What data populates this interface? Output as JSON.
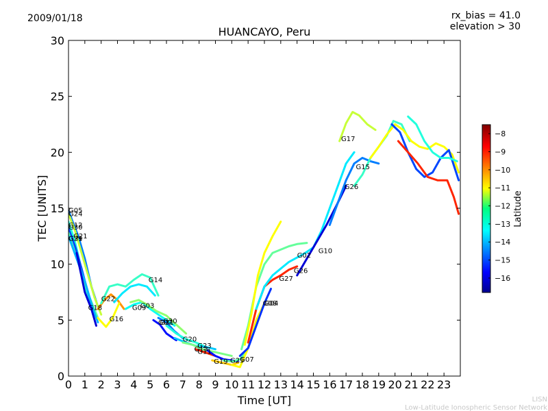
{
  "header": {
    "date": "2009/01/18",
    "params": [
      "rx_bias = 41.0",
      "elevation > 30"
    ]
  },
  "footer": {
    "credit_line1": "LISN",
    "credit_line2": "Low-Latitude Ionospheric Sensor Network"
  },
  "chart_data": {
    "type": "line",
    "title": "HUANCAYO, Peru",
    "xlabel": "Time [UT]",
    "ylabel": "TEC [UNITS]",
    "xlim": [
      0,
      24
    ],
    "ylim": [
      0,
      30
    ],
    "x_ticks": [
      0,
      1,
      2,
      3,
      4,
      5,
      6,
      7,
      8,
      9,
      10,
      11,
      12,
      13,
      14,
      15,
      16,
      17,
      18,
      19,
      20,
      21,
      22,
      23
    ],
    "y_ticks": [
      0,
      5,
      10,
      15,
      20,
      25,
      30
    ],
    "grid": false,
    "colorbar": {
      "label": "Latitude",
      "range": [
        -16.8,
        -7.5
      ],
      "ticks": [
        -8,
        -9,
        -10,
        -11,
        -12,
        -13,
        -14,
        -15,
        -16
      ],
      "colormap": "jet"
    },
    "series": [
      {
        "name": "G05",
        "lat": -14.5,
        "x": [
          0,
          0.3,
          0.6,
          1.0,
          1.4,
          1.8
        ],
        "y": [
          14.8,
          13.6,
          12.5,
          10.5,
          8.0,
          6.2
        ]
      },
      {
        "name": "G24",
        "lat": -11.5,
        "x": [
          0,
          0.4,
          0.8,
          1.2,
          1.6,
          2.0
        ],
        "y": [
          14.5,
          13.0,
          11.0,
          9.0,
          7.0,
          5.5
        ]
      },
      {
        "name": "G12",
        "lat": -13.0,
        "x": [
          0,
          0.4,
          0.8,
          1.2,
          1.6
        ],
        "y": [
          13.8,
          12.0,
          9.5,
          7.0,
          5.8
        ]
      },
      {
        "name": "G30",
        "lat": -15.0,
        "x": [
          0,
          0.4,
          0.8,
          1.2,
          1.6
        ],
        "y": [
          13.2,
          11.6,
          9.6,
          7.4,
          5.5
        ]
      },
      {
        "name": "G21",
        "lat": -12.5,
        "x": [
          0,
          0.4,
          0.8,
          1.3,
          1.8
        ],
        "y": [
          12.8,
          11.0,
          9.2,
          7.0,
          5.2
        ]
      },
      {
        "name": "G29",
        "lat": -14.0,
        "x": [
          0,
          0.5,
          1.0,
          1.5,
          1.8
        ],
        "y": [
          12.5,
          10.5,
          8.5,
          6.0,
          4.8
        ]
      },
      {
        "name": "G18",
        "lat": -16.0,
        "x": [
          0.5,
          1.0,
          1.4,
          1.7
        ],
        "y": [
          11.0,
          7.5,
          6.0,
          4.5
        ]
      },
      {
        "name": "G22",
        "lat": -10.0,
        "x": [
          1.8,
          2.2,
          2.6,
          3.0,
          3.4
        ],
        "y": [
          6.0,
          6.8,
          7.3,
          6.8,
          6.0
        ]
      },
      {
        "name": "G16",
        "lat": -11.0,
        "x": [
          1.8,
          2.3,
          2.7,
          3.1
        ],
        "y": [
          5.2,
          4.4,
          5.2,
          6.5
        ]
      },
      {
        "name": "G14",
        "lat": -12.8,
        "x": [
          2.0,
          2.5,
          3.0,
          3.5,
          4.0,
          4.5,
          5.0,
          5.5
        ],
        "y": [
          6.5,
          8.0,
          8.2,
          8.0,
          8.6,
          9.1,
          8.8,
          7.2
        ]
      },
      {
        "name": "G09",
        "lat": -13.5,
        "x": [
          2.8,
          3.3,
          3.8,
          4.3,
          4.8,
          5.3
        ],
        "y": [
          6.6,
          7.4,
          8.0,
          8.2,
          8.0,
          7.2
        ]
      },
      {
        "name": "G03",
        "lat": -13.2,
        "x": [
          3.5,
          4.0,
          4.5,
          5.0,
          5.5,
          6.0,
          6.5
        ],
        "y": [
          6.0,
          6.4,
          6.6,
          6.0,
          5.5,
          5.0,
          4.5
        ]
      },
      {
        "name": "G07",
        "lat": -12.0,
        "x": [
          3.8,
          4.3,
          4.8,
          5.4,
          6.0,
          6.6,
          7.2
        ],
        "y": [
          6.6,
          6.8,
          6.4,
          5.8,
          5.4,
          4.6,
          3.8
        ]
      },
      {
        "name": "G31",
        "lat": -15.5,
        "x": [
          5.2,
          5.6,
          6.0,
          6.6
        ],
        "y": [
          5.0,
          4.6,
          3.8,
          3.2
        ]
      },
      {
        "name": "G30",
        "lat": -14.5,
        "x": [
          5.5,
          6.0,
          6.5,
          7.0
        ],
        "y": [
          5.2,
          4.8,
          4.0,
          3.4
        ]
      },
      {
        "name": "G20",
        "lat": -13.0,
        "x": [
          6.0,
          6.6,
          7.2,
          7.8,
          8.4
        ],
        "y": [
          4.5,
          3.8,
          3.3,
          3.0,
          2.6
        ]
      },
      {
        "name": "G23",
        "lat": -13.8,
        "x": [
          6.5,
          7.2,
          7.8,
          8.4,
          9.0
        ],
        "y": [
          3.4,
          3.0,
          2.7,
          2.6,
          2.4
        ]
      },
      {
        "name": "G11",
        "lat": -12.2,
        "x": [
          7.0,
          7.6,
          8.2,
          8.8,
          9.4,
          10.0
        ],
        "y": [
          3.0,
          2.8,
          2.4,
          2.2,
          2.0,
          1.8
        ]
      },
      {
        "name": "G13",
        "lat": -9.0,
        "x": [
          7.8,
          8.2,
          8.6,
          9.0
        ],
        "y": [
          2.4,
          2.2,
          2.0,
          1.8
        ]
      },
      {
        "name": "G19",
        "lat": -15.5,
        "x": [
          8.5,
          9.0,
          9.5,
          10.0,
          10.4
        ],
        "y": [
          2.3,
          1.8,
          1.5,
          1.4,
          1.3
        ]
      },
      {
        "name": "G25",
        "lat": -10.5,
        "x": [
          8.8,
          9.4,
          10.0,
          10.4
        ],
        "y": [
          1.4,
          1.2,
          1.0,
          1.2
        ]
      },
      {
        "name": "G07",
        "lat": -12.5,
        "x": [
          9.5,
          10.0,
          10.5,
          10.9
        ],
        "y": [
          1.4,
          1.3,
          1.5,
          2.2
        ]
      },
      {
        "name": "G04",
        "lat": -11.0,
        "x": [
          10.0,
          10.5,
          11.0,
          11.5,
          12.0
        ],
        "y": [
          1.0,
          0.8,
          2.5,
          5.0,
          6.5
        ]
      },
      {
        "name": "G08",
        "lat": -15.2,
        "x": [
          10.5,
          11.0,
          11.5,
          12.0,
          12.4
        ],
        "y": [
          1.8,
          2.5,
          4.5,
          6.5,
          7.8
        ]
      },
      {
        "name": "G02",
        "lat": -12.4,
        "x": [
          10.6,
          11.0,
          11.5,
          12.0,
          12.5,
          13.0,
          13.5,
          14.0,
          14.6
        ],
        "y": [
          2.4,
          4.5,
          8.0,
          10.0,
          11.0,
          11.3,
          11.6,
          11.8,
          11.9
        ]
      },
      {
        "name": "G27",
        "lat": -11.0,
        "x": [
          10.8,
          11.2,
          11.6,
          12.0,
          12.5,
          13.0
        ],
        "y": [
          2.8,
          5.5,
          9.0,
          11.0,
          12.5,
          13.8
        ]
      },
      {
        "name": "G26",
        "lat": -9.0,
        "x": [
          11.0,
          11.5,
          12.0,
          12.5,
          13.0,
          13.5,
          14.0
        ],
        "y": [
          3.0,
          6.0,
          8.0,
          8.6,
          9.0,
          9.5,
          9.8
        ]
      },
      {
        "name": "G10",
        "lat": -13.5,
        "x": [
          11.5,
          12.0,
          12.5,
          13.0,
          13.5,
          14.0,
          14.5,
          15.0,
          15.5,
          16.0,
          16.5,
          17.0,
          17.5
        ],
        "y": [
          6.0,
          8.0,
          9.0,
          9.6,
          10.2,
          10.6,
          11.0,
          11.5,
          13.0,
          15.0,
          17.0,
          19.0,
          20.0
        ]
      },
      {
        "name": "G26",
        "lat": -16.0,
        "x": [
          14.0,
          14.6,
          15.2,
          15.8,
          16.4,
          17.0
        ],
        "y": [
          9.0,
          10.5,
          12.0,
          13.5,
          15.2,
          17.0
        ]
      },
      {
        "name": "G17",
        "lat": -11.5,
        "x": [
          16.6,
          17.0,
          17.4,
          17.8,
          18.3,
          18.8
        ],
        "y": [
          21.0,
          22.6,
          23.6,
          23.3,
          22.5,
          22.0
        ]
      },
      {
        "name": "G15",
        "lat": -14.5,
        "x": [
          16.0,
          16.5,
          17.0,
          17.5,
          18.0,
          18.5,
          19.0
        ],
        "y": [
          13.5,
          15.5,
          17.5,
          19.0,
          19.5,
          19.2,
          19.0
        ]
      },
      {
        "name": "G15",
        "lat": -12.8,
        "x": [
          17.5,
          18.0,
          18.5,
          19.0,
          19.5,
          19.9,
          20.4,
          20.9
        ],
        "y": [
          17.0,
          18.0,
          19.5,
          20.5,
          21.5,
          22.8,
          22.5,
          21.0
        ]
      },
      {
        "name": "G28",
        "lat": -11.0,
        "x": [
          18.5,
          19.0,
          19.5,
          20.0,
          20.5,
          21.0,
          21.5,
          22.0,
          22.5,
          23.0,
          23.5,
          23.9
        ],
        "y": [
          19.5,
          20.5,
          21.6,
          22.5,
          22.0,
          21.0,
          20.5,
          20.3,
          20.8,
          20.5,
          19.8,
          18.2
        ]
      },
      {
        "name": "G16",
        "lat": -15.0,
        "x": [
          19.8,
          20.3,
          20.8,
          21.3,
          21.8,
          22.3,
          22.8,
          23.3,
          23.9
        ],
        "y": [
          22.5,
          21.8,
          20.0,
          18.5,
          17.8,
          18.2,
          19.5,
          20.2,
          17.5
        ]
      },
      {
        "name": "G21",
        "lat": -9.0,
        "x": [
          20.2,
          20.8,
          21.4,
          22.0,
          22.6,
          23.2,
          23.6,
          23.9
        ],
        "y": [
          21.0,
          20.0,
          19.0,
          17.8,
          17.5,
          17.5,
          16.0,
          14.5
        ]
      },
      {
        "name": "G31",
        "lat": -13.0,
        "x": [
          20.8,
          21.3,
          21.8,
          22.3,
          22.8,
          23.3,
          23.8
        ],
        "y": [
          23.2,
          22.5,
          21.0,
          20.0,
          19.5,
          19.5,
          19.2
        ]
      }
    ],
    "annotations": [
      {
        "text": "G05",
        "x": 0.0,
        "y": 14.6
      },
      {
        "text": "G24",
        "x": 0.0,
        "y": 14.3
      },
      {
        "text": "G12",
        "x": 0.0,
        "y": 13.3
      },
      {
        "text": "G30",
        "x": 0.0,
        "y": 13.1
      },
      {
        "text": "G21",
        "x": 0.3,
        "y": 12.3
      },
      {
        "text": "G29",
        "x": 0.0,
        "y": 12.1
      },
      {
        "text": "G31",
        "x": 0.0,
        "y": 12.1
      },
      {
        "text": "G18",
        "x": 1.2,
        "y": 5.9
      },
      {
        "text": "G22",
        "x": 2.0,
        "y": 6.7
      },
      {
        "text": "G16",
        "x": 2.5,
        "y": 4.9
      },
      {
        "text": "G14",
        "x": 4.9,
        "y": 8.4
      },
      {
        "text": "G09",
        "x": 3.9,
        "y": 5.9
      },
      {
        "text": "G03",
        "x": 4.4,
        "y": 6.1
      },
      {
        "text": "G07",
        "x": 5.5,
        "y": 4.6
      },
      {
        "text": "G31",
        "x": 5.6,
        "y": 4.6
      },
      {
        "text": "G30",
        "x": 5.8,
        "y": 4.7
      },
      {
        "text": "G20",
        "x": 7.0,
        "y": 3.1
      },
      {
        "text": "G23",
        "x": 7.9,
        "y": 2.5
      },
      {
        "text": "G11",
        "x": 7.9,
        "y": 2.0
      },
      {
        "text": "G13",
        "x": 7.7,
        "y": 2.2
      },
      {
        "text": "G19",
        "x": 8.9,
        "y": 1.1
      },
      {
        "text": "G25",
        "x": 9.9,
        "y": 1.2
      },
      {
        "text": "G07",
        "x": 10.5,
        "y": 1.3
      },
      {
        "text": "G04",
        "x": 12.0,
        "y": 6.3
      },
      {
        "text": "G08",
        "x": 11.9,
        "y": 6.3
      },
      {
        "text": "G02",
        "x": 14.0,
        "y": 10.6
      },
      {
        "text": "G10",
        "x": 15.3,
        "y": 11.0
      },
      {
        "text": "G26",
        "x": 13.8,
        "y": 9.2
      },
      {
        "text": "G27",
        "x": 12.9,
        "y": 8.5
      },
      {
        "text": "G26",
        "x": 16.9,
        "y": 16.7
      },
      {
        "text": "G17",
        "x": 16.7,
        "y": 21.0
      },
      {
        "text": "G15",
        "x": 17.6,
        "y": 18.5
      }
    ]
  }
}
